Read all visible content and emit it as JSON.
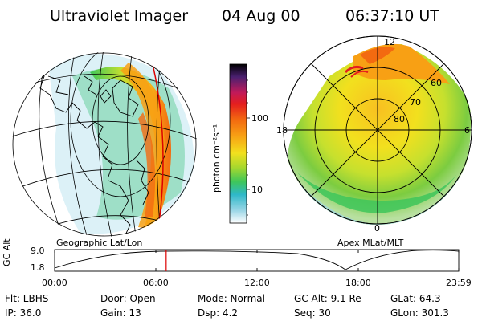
{
  "header": {
    "instrument": "Ultraviolet Imager",
    "date": "04 Aug 00",
    "time": "06:37:10 UT"
  },
  "colorbar": {
    "unit_label": "photon cm⁻²s⁻¹",
    "ticks": [
      "100",
      "10"
    ],
    "colors": [
      "#000000",
      "#5a2a78",
      "#c21a5a",
      "#e41e1e",
      "#f36a10",
      "#f8a014",
      "#f2e01e",
      "#a6d82e",
      "#3ec65a",
      "#2eb8c8",
      "#9ad6e6",
      "#ffffff"
    ]
  },
  "left_map": {
    "label": "Geographic Lat/Lon"
  },
  "right_map": {
    "label": "Apex MLat/MLT",
    "mlt_labels": {
      "top": "12",
      "left": "18",
      "right": "6",
      "bottom": "0"
    },
    "lat_labels": [
      "60",
      "70",
      "80"
    ]
  },
  "altitude_plot": {
    "axis_label": "GC Alt",
    "y_ticks": [
      "9.0",
      "1.8"
    ],
    "x_ticks": [
      "00:00",
      "06:00",
      "12:00",
      "18:00",
      "23:59"
    ],
    "current_time_fraction": 0.276,
    "marker_color": "#dd0000"
  },
  "info": {
    "filter": "Flt: LBHS",
    "door": "Door: Open",
    "mode": "Mode: Normal",
    "gc_alt": "GC Alt: 9.1 Re",
    "glat": "GLat:  64.3",
    "ip": "IP: 36.0",
    "gain": "Gain: 13",
    "dsp": "Dsp:     4.2",
    "seq": "Seq: 30",
    "glon": "GLon: 301.3"
  }
}
